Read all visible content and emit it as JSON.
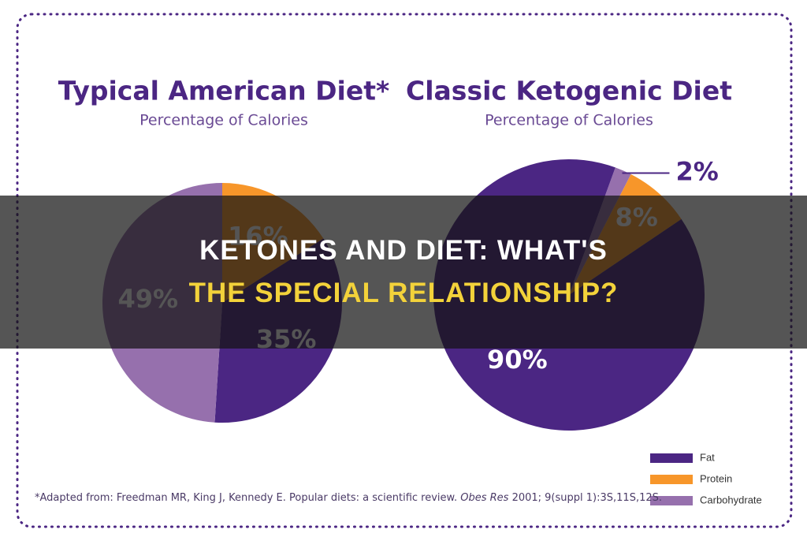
{
  "chart_data": [
    {
      "type": "pie",
      "title": "Typical American Diet*",
      "subtitle": "Percentage of Calories",
      "categories": [
        "Fat",
        "Protein",
        "Carbohydrate"
      ],
      "values": [
        35,
        16,
        49
      ],
      "value_labels": [
        "35%",
        "16%",
        "49%"
      ],
      "colors": [
        "#4b2683",
        "#f7962a",
        "#9670ad"
      ]
    },
    {
      "type": "pie",
      "title": "Classic Ketogenic Diet",
      "subtitle": "Percentage of Calories",
      "categories": [
        "Fat",
        "Protein",
        "Carbohydrate"
      ],
      "values": [
        90,
        8,
        2
      ],
      "value_labels": [
        "90%",
        "8%",
        "2%"
      ],
      "colors": [
        "#4b2683",
        "#f7962a",
        "#9670ad"
      ]
    }
  ],
  "footnote": [
    "*Adapted from: Freedman MR, King J, Kennedy E. Popular diets: a scientific review. ",
    "Obes Res",
    " 2001; 9(suppl 1):3S,11S,12S."
  ],
  "overlay": {
    "title_lines": [
      "KETONES AND DIET: WHAT'S",
      "THE SPECIAL RELATIONSHIP?"
    ]
  }
}
